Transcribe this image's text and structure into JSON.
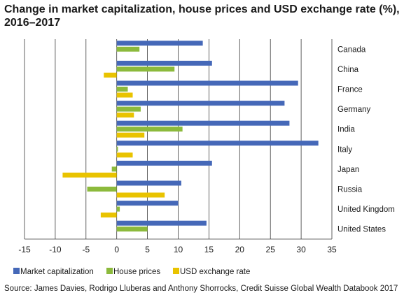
{
  "chart_data": {
    "type": "bar",
    "orientation": "horizontal",
    "title": "Change in market capitalization, house prices and USD exchange rate (%), 2016–2017",
    "categories": [
      "Canada",
      "China",
      "France",
      "Germany",
      "India",
      "Italy",
      "Japan",
      "Russia",
      "United Kingdom",
      "United States"
    ],
    "series": [
      {
        "name": "Market capitalization",
        "color": "#4568b8",
        "values": [
          14.0,
          15.5,
          29.5,
          27.3,
          28.1,
          32.8,
          15.5,
          10.5,
          10.0,
          14.6
        ]
      },
      {
        "name": "House prices",
        "color": "#8cba3c",
        "values": [
          3.7,
          9.4,
          1.8,
          3.9,
          10.7,
          0.2,
          -0.8,
          -4.8,
          0.5,
          5.0
        ]
      },
      {
        "name": "USD exchange rate",
        "color": "#e9c300",
        "values": [
          0.0,
          -2.1,
          2.6,
          2.8,
          4.5,
          2.6,
          -8.8,
          7.8,
          -2.6,
          0.0
        ]
      }
    ],
    "xlim": [
      -15,
      35
    ],
    "xticks": [
      "-15",
      "-10",
      "-5",
      "0",
      "5",
      "10",
      "15",
      "20",
      "25",
      "30",
      "35"
    ],
    "grid": true,
    "legend_position": "bottom-left"
  },
  "source": "Source: James Davies, Rodrigo Lluberas and Anthony Shorrocks, Credit Suisse Global Wealth Databook 2017"
}
